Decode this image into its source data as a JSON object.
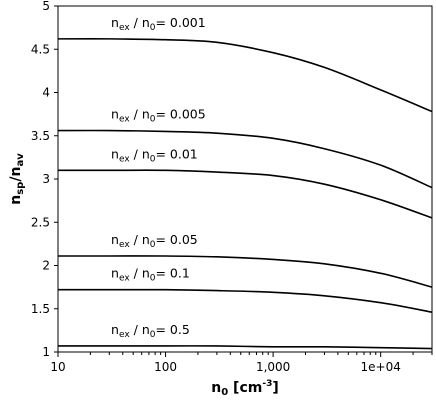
{
  "chart_data": {
    "type": "line",
    "x_scale": "log",
    "xlim": [
      10,
      30000
    ],
    "ylim": [
      1,
      5
    ],
    "grid": false,
    "xlabel": {
      "main": "n",
      "sub": "0",
      "unit_open": " [cm",
      "unit_sup": "-3",
      "unit_close": "]"
    },
    "ylabel": {
      "main": "n",
      "sub1": "sp",
      "sep": "/n",
      "sub2": "av"
    },
    "x_ticks": [
      {
        "value": 10,
        "label": "10"
      },
      {
        "value": 100,
        "label": "100"
      },
      {
        "value": 1000,
        "label": "1,000"
      },
      {
        "value": 10000,
        "label": "1e+04"
      }
    ],
    "y_ticks": [
      {
        "value": 1,
        "label": "1"
      },
      {
        "value": 1.5,
        "label": "1.5"
      },
      {
        "value": 2,
        "label": "2"
      },
      {
        "value": 2.5,
        "label": "2.5"
      },
      {
        "value": 3,
        "label": "3"
      },
      {
        "value": 3.5,
        "label": "3.5"
      },
      {
        "value": 4,
        "label": "4"
      },
      {
        "value": 4.5,
        "label": "4.5"
      },
      {
        "value": 5,
        "label": "5"
      }
    ],
    "x": [
      10,
      30,
      100,
      300,
      1000,
      3000,
      10000,
      30000
    ],
    "series": [
      {
        "id": "ratio-0.001",
        "values": [
          4.62,
          4.62,
          4.61,
          4.58,
          4.46,
          4.29,
          4.03,
          3.78
        ],
        "annotation": {
          "n": "n",
          "ex": "ex",
          "mid": " / n",
          "zero": "0",
          "value": "= 0.001"
        }
      },
      {
        "id": "ratio-0.005",
        "values": [
          3.56,
          3.56,
          3.55,
          3.53,
          3.47,
          3.35,
          3.16,
          2.9
        ],
        "annotation": {
          "n": "n",
          "ex": "ex",
          "mid": " / n",
          "zero": "0",
          "value": "= 0.005"
        }
      },
      {
        "id": "ratio-0.01",
        "values": [
          3.1,
          3.1,
          3.1,
          3.08,
          3.04,
          2.94,
          2.76,
          2.55
        ],
        "annotation": {
          "n": "n",
          "ex": "ex",
          "mid": " / n",
          "zero": "0",
          "value": "= 0.01"
        }
      },
      {
        "id": "ratio-0.05",
        "values": [
          2.11,
          2.11,
          2.11,
          2.1,
          2.07,
          2.02,
          1.91,
          1.75
        ],
        "annotation": {
          "n": "n",
          "ex": "ex",
          "mid": " / n",
          "zero": "0",
          "value": "= 0.05"
        }
      },
      {
        "id": "ratio-0.1",
        "values": [
          1.72,
          1.72,
          1.72,
          1.71,
          1.69,
          1.65,
          1.57,
          1.46
        ],
        "annotation": {
          "n": "n",
          "ex": "ex",
          "mid": " / n",
          "zero": "0",
          "value": "= 0.1"
        }
      },
      {
        "id": "ratio-0.5",
        "values": [
          1.07,
          1.07,
          1.07,
          1.07,
          1.06,
          1.06,
          1.05,
          1.04
        ],
        "annotation": {
          "n": "n",
          "ex": "ex",
          "mid": " / n",
          "zero": "0",
          "value": "= 0.5"
        }
      }
    ]
  }
}
